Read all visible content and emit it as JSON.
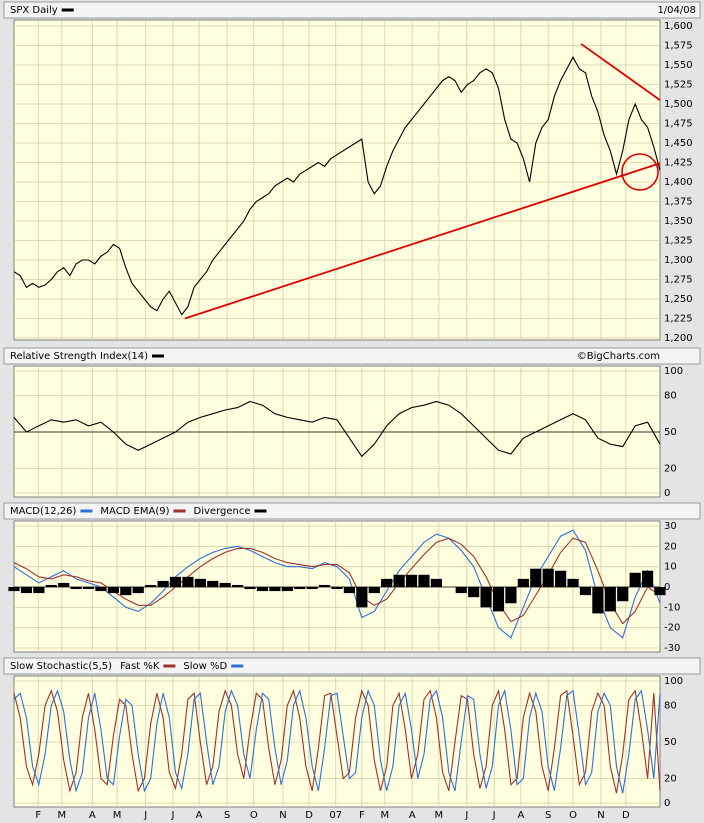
{
  "chart_data": [
    {
      "type": "line",
      "date": "1/04/08",
      "x": [
        0,
        1,
        2,
        3,
        4,
        5,
        6,
        7,
        8,
        9,
        10,
        11,
        12,
        13,
        14,
        15,
        16,
        17,
        18,
        19,
        20,
        21,
        22,
        23,
        24,
        25,
        26,
        27,
        28,
        29,
        30,
        31,
        32,
        33,
        34,
        35,
        36,
        37,
        38,
        39,
        40,
        41,
        42,
        43,
        44,
        45,
        46,
        47,
        48,
        49,
        50,
        51,
        52,
        53,
        54,
        55,
        56,
        57,
        58,
        59,
        60,
        61,
        62,
        63,
        64,
        65,
        66,
        67,
        68,
        69,
        70,
        71,
        72,
        73,
        74,
        75,
        76,
        77,
        78,
        79,
        80,
        81,
        82,
        83,
        84,
        85,
        86,
        87,
        88,
        89,
        90,
        91,
        92,
        93,
        94,
        95,
        96,
        97,
        98,
        99,
        100,
        101,
        102,
        103,
        104
      ],
      "series": [
        {
          "name": "SPX Daily",
          "color": "#000000",
          "values": [
            1285,
            1280,
            1265,
            1270,
            1265,
            1268,
            1275,
            1285,
            1290,
            1280,
            1295,
            1300,
            1300,
            1295,
            1305,
            1310,
            1320,
            1315,
            1290,
            1270,
            1260,
            1250,
            1240,
            1235,
            1250,
            1260,
            1245,
            1230,
            1240,
            1265,
            1275,
            1285,
            1300,
            1310,
            1320,
            1330,
            1340,
            1350,
            1365,
            1375,
            1380,
            1385,
            1395,
            1400,
            1405,
            1400,
            1410,
            1415,
            1420,
            1425,
            1420,
            1430,
            1435,
            1440,
            1445,
            1450,
            1455,
            1400,
            1385,
            1395,
            1420,
            1440,
            1455,
            1470,
            1480,
            1490,
            1500,
            1510,
            1520,
            1530,
            1535,
            1530,
            1515,
            1525,
            1530,
            1540,
            1545,
            1540,
            1520,
            1480,
            1455,
            1450,
            1430,
            1400,
            1450,
            1470,
            1480,
            1510,
            1530,
            1545,
            1560,
            1545,
            1540,
            1510,
            1490,
            1460,
            1440,
            1410,
            1440,
            1480,
            1500,
            1480,
            1470,
            1445,
            1415
          ]
        }
      ],
      "trendlines": [
        {
          "color": "#e00000",
          "x": [
            27.5,
            104
          ],
          "y": [
            1225,
            1424
          ]
        },
        {
          "color": "#e00000",
          "x": [
            91.3,
            104
          ],
          "y": [
            1577,
            1505
          ]
        }
      ],
      "xlim": [
        0,
        104
      ],
      "xticks": [
        {
          "value": 3.9,
          "label": "F"
        },
        {
          "value": 7.7,
          "label": "M"
        },
        {
          "value": 12.6,
          "label": "A"
        },
        {
          "value": 16.6,
          "label": "M"
        },
        {
          "value": 21.2,
          "label": "J"
        },
        {
          "value": 25.6,
          "label": "J"
        },
        {
          "value": 29.8,
          "label": "A"
        },
        {
          "value": 34.3,
          "label": "S"
        },
        {
          "value": 38.6,
          "label": "O"
        },
        {
          "value": 43.3,
          "label": "N"
        },
        {
          "value": 47.5,
          "label": "D"
        },
        {
          "value": 51.8,
          "label": "07"
        },
        {
          "value": 56.0,
          "label": "F"
        },
        {
          "value": 59.7,
          "label": "M"
        },
        {
          "value": 64.1,
          "label": "A"
        },
        {
          "value": 68.4,
          "label": "M"
        },
        {
          "value": 72.9,
          "label": "J"
        },
        {
          "value": 77.3,
          "label": "J"
        },
        {
          "value": 81.6,
          "label": "A"
        },
        {
          "value": 86.0,
          "label": "S"
        },
        {
          "value": 90.0,
          "label": "O"
        },
        {
          "value": 94.5,
          "label": "N"
        },
        {
          "value": 98.5,
          "label": "D"
        }
      ],
      "ylim": [
        1200,
        1600
      ],
      "yticks": [
        {
          "value": 1200,
          "label": "1,200"
        },
        {
          "value": 1225,
          "label": "1,225"
        },
        {
          "value": 1250,
          "label": "1,250"
        },
        {
          "value": 1275,
          "label": "1,275"
        },
        {
          "value": 1300,
          "label": "1,300"
        },
        {
          "value": 1325,
          "label": "1,325"
        },
        {
          "value": 1350,
          "label": "1,350"
        },
        {
          "value": 1375,
          "label": "1,375"
        },
        {
          "value": 1400,
          "label": "1,400"
        },
        {
          "value": 1425,
          "label": "1,425"
        },
        {
          "value": 1450,
          "label": "1,450"
        },
        {
          "value": 1475,
          "label": "1,475"
        },
        {
          "value": 1500,
          "label": "1,500"
        },
        {
          "value": 1525,
          "label": "1,525"
        },
        {
          "value": 1550,
          "label": "1,550"
        },
        {
          "value": 1575,
          "label": "1,575"
        },
        {
          "value": 1600,
          "label": "1,600"
        }
      ],
      "grid": true
    },
    {
      "type": "line",
      "credit": "©BigCharts.com",
      "x": [
        0,
        2,
        4,
        6,
        8,
        10,
        12,
        14,
        16,
        18,
        20,
        22,
        24,
        26,
        28,
        30,
        32,
        34,
        36,
        38,
        40,
        42,
        44,
        46,
        48,
        50,
        52,
        54,
        56,
        58,
        60,
        62,
        64,
        66,
        68,
        70,
        72,
        74,
        76,
        78,
        80,
        82,
        84,
        86,
        88,
        90,
        92,
        94,
        96,
        98,
        100,
        102,
        104
      ],
      "series": [
        {
          "name": "Relative Strength Index(14)",
          "color": "#000000",
          "values": [
            62,
            50,
            55,
            60,
            58,
            60,
            55,
            58,
            50,
            40,
            35,
            40,
            45,
            50,
            58,
            62,
            65,
            68,
            70,
            75,
            72,
            65,
            62,
            60,
            58,
            62,
            60,
            45,
            30,
            40,
            55,
            65,
            70,
            72,
            75,
            72,
            65,
            55,
            45,
            35,
            32,
            45,
            50,
            55,
            60,
            65,
            60,
            45,
            40,
            38,
            55,
            58,
            40
          ]
        }
      ],
      "ylim": [
        0,
        100
      ],
      "yticks": [
        0,
        20,
        50,
        80,
        100
      ],
      "refline": 50,
      "grid": true
    },
    {
      "type": "line",
      "x": [
        0,
        2,
        4,
        6,
        8,
        10,
        12,
        14,
        16,
        18,
        20,
        22,
        24,
        26,
        28,
        30,
        32,
        34,
        36,
        38,
        40,
        42,
        44,
        46,
        48,
        50,
        52,
        54,
        56,
        58,
        60,
        62,
        64,
        66,
        68,
        70,
        72,
        74,
        76,
        78,
        80,
        82,
        84,
        86,
        88,
        90,
        92,
        94,
        96,
        98,
        100,
        102,
        104
      ],
      "series": [
        {
          "name": "MACD(12,26)",
          "color": "#2f6fd6",
          "values": [
            10,
            6,
            2,
            5,
            8,
            4,
            2,
            0,
            -5,
            -10,
            -12,
            -8,
            -2,
            5,
            10,
            14,
            17,
            19,
            20,
            18,
            15,
            12,
            10,
            10,
            9,
            12,
            10,
            4,
            -15,
            -12,
            -2,
            8,
            15,
            22,
            26,
            24,
            18,
            10,
            -5,
            -20,
            -25,
            -10,
            5,
            15,
            25,
            28,
            18,
            -5,
            -20,
            -25,
            -5,
            8,
            -8
          ]
        },
        {
          "name": "MACD EMA(9)",
          "color": "#a03030",
          "values": [
            12,
            9,
            5,
            4,
            6,
            5,
            3,
            2,
            -2,
            -6,
            -9,
            -9,
            -5,
            0,
            5,
            10,
            14,
            17,
            19,
            19,
            17,
            14,
            12,
            11,
            10,
            11,
            11,
            7,
            -5,
            -9,
            -6,
            2,
            9,
            16,
            22,
            24,
            21,
            15,
            5,
            -8,
            -17,
            -14,
            -4,
            6,
            17,
            24,
            22,
            8,
            -8,
            -18,
            -12,
            0,
            -4
          ]
        },
        {
          "name": "Divergence",
          "color": "#000000",
          "style": "bar",
          "values": [
            -2,
            -3,
            -3,
            1,
            2,
            -1,
            -1,
            -2,
            -3,
            -4,
            -3,
            1,
            3,
            5,
            5,
            4,
            3,
            2,
            1,
            -1,
            -2,
            -2,
            -2,
            -1,
            -1,
            1,
            -1,
            -3,
            -10,
            -3,
            4,
            6,
            6,
            6,
            4,
            0,
            -3,
            -5,
            -10,
            -12,
            -8,
            4,
            9,
            9,
            8,
            4,
            -4,
            -13,
            -12,
            -7,
            7,
            8,
            -4
          ]
        }
      ],
      "ylim": [
        -30,
        30
      ],
      "yticks": [
        -30,
        -20,
        -10,
        0,
        10,
        20,
        30
      ],
      "refline": 0,
      "grid": true
    },
    {
      "type": "line",
      "title": "Slow Stochastic(5,5)",
      "x": [
        0,
        1,
        2,
        3,
        4,
        5,
        6,
        7,
        8,
        9,
        10,
        11,
        12,
        13,
        14,
        15,
        16,
        17,
        18,
        19,
        20,
        21,
        22,
        23,
        24,
        25,
        26,
        27,
        28,
        29,
        30,
        31,
        32,
        33,
        34,
        35,
        36,
        37,
        38,
        39,
        40,
        41,
        42,
        43,
        44,
        45,
        46,
        47,
        48,
        49,
        50,
        51,
        52,
        53,
        54,
        55,
        56,
        57,
        58,
        59,
        60,
        61,
        62,
        63,
        64,
        65,
        66,
        67,
        68,
        69,
        70,
        71,
        72,
        73,
        74,
        75,
        76,
        77,
        78,
        79,
        80,
        81,
        82,
        83,
        84,
        85,
        86,
        87,
        88,
        89,
        90,
        91,
        92,
        93,
        94,
        95,
        96,
        97,
        98,
        99,
        100,
        101,
        102,
        103,
        104
      ],
      "series": [
        {
          "name": "Fast %K",
          "color": "#a03030",
          "values": [
            90,
            70,
            30,
            15,
            40,
            80,
            92,
            75,
            35,
            10,
            25,
            70,
            90,
            60,
            20,
            15,
            55,
            85,
            80,
            40,
            10,
            20,
            65,
            90,
            70,
            25,
            12,
            40,
            85,
            90,
            50,
            15,
            30,
            75,
            92,
            80,
            40,
            20,
            60,
            90,
            85,
            45,
            15,
            35,
            80,
            92,
            70,
            30,
            10,
            45,
            88,
            90,
            55,
            20,
            25,
            70,
            92,
            80,
            35,
            10,
            30,
            80,
            90,
            60,
            20,
            40,
            85,
            92,
            70,
            25,
            10,
            50,
            88,
            85,
            40,
            12,
            30,
            80,
            92,
            60,
            15,
            20,
            70,
            90,
            75,
            30,
            10,
            45,
            88,
            92,
            55,
            15,
            25,
            75,
            90,
            80,
            30,
            8,
            40,
            85,
            92,
            60,
            20,
            90,
            10
          ]
        },
        {
          "name": "Slow %D",
          "color": "#2f6fd6",
          "values": [
            85,
            90,
            70,
            30,
            15,
            40,
            80,
            92,
            75,
            35,
            10,
            25,
            70,
            90,
            60,
            20,
            15,
            55,
            85,
            80,
            40,
            10,
            20,
            65,
            90,
            70,
            25,
            12,
            40,
            85,
            90,
            50,
            15,
            30,
            75,
            92,
            80,
            40,
            20,
            60,
            90,
            85,
            45,
            15,
            35,
            80,
            92,
            70,
            30,
            10,
            45,
            88,
            90,
            55,
            20,
            25,
            70,
            92,
            80,
            35,
            10,
            30,
            80,
            90,
            60,
            20,
            40,
            85,
            92,
            70,
            25,
            10,
            50,
            88,
            85,
            40,
            12,
            30,
            80,
            92,
            60,
            15,
            20,
            70,
            90,
            75,
            30,
            10,
            45,
            88,
            92,
            55,
            15,
            25,
            75,
            90,
            80,
            30,
            8,
            40,
            85,
            92,
            60,
            20,
            90
          ]
        }
      ],
      "ylim": [
        0,
        100
      ],
      "yticks": [
        0,
        20,
        50,
        80,
        100
      ],
      "grid": true
    }
  ]
}
